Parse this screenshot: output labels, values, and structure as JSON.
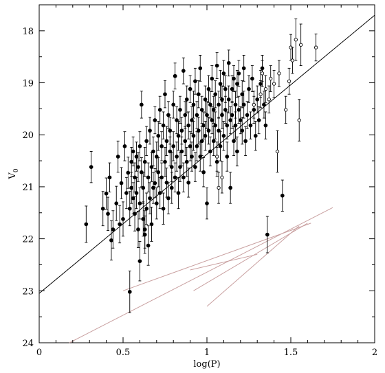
{
  "chart_data": {
    "type": "scatter",
    "title": "",
    "xlabel": "log(P)",
    "ylabel_main": "V",
    "ylabel_sub": "0",
    "xlim": [
      0,
      2
    ],
    "ylim": [
      24,
      17.5
    ],
    "y_inverted": true,
    "x_ticks": [
      0,
      0.5,
      1,
      1.5,
      2
    ],
    "x_tick_labels": [
      "0",
      "0.5",
      "1",
      "1.5",
      "2"
    ],
    "y_ticks": [
      18,
      19,
      20,
      21,
      22,
      23,
      24
    ],
    "y_tick_labels": [
      "18",
      "19",
      "20",
      "21",
      "22",
      "23",
      "24"
    ],
    "grid": false,
    "legend": "none",
    "colors": {
      "points": "#000000",
      "fit_line": "#000000",
      "reference_lines": "#c9a0a0"
    },
    "fit_line": {
      "x": [
        0,
        2
      ],
      "y": [
        23.05,
        17.7
      ]
    },
    "reference_lines": [
      {
        "x": [
          0.18,
          1.75
        ],
        "y": [
          24.0,
          21.4
        ]
      },
      {
        "x": [
          0.5,
          1.62
        ],
        "y": [
          23.0,
          21.7
        ]
      },
      {
        "x": [
          0.92,
          1.6
        ],
        "y": [
          23.0,
          21.7
        ]
      },
      {
        "x": [
          1.0,
          1.55
        ],
        "y": [
          23.3,
          21.75
        ]
      },
      {
        "x": [
          0.9,
          1.3
        ],
        "y": [
          22.6,
          22.3
        ]
      }
    ],
    "series_filled": [
      [
        0.28,
        21.72,
        0.35
      ],
      [
        0.31,
        20.62,
        0.3
      ],
      [
        0.38,
        21.42,
        0.33
      ],
      [
        0.4,
        21.13,
        0.3
      ],
      [
        0.41,
        21.52,
        0.32
      ],
      [
        0.42,
        20.82,
        0.28
      ],
      [
        0.43,
        22.03,
        0.38
      ],
      [
        0.44,
        21.82,
        0.36
      ],
      [
        0.46,
        21.32,
        0.33
      ],
      [
        0.47,
        20.42,
        0.3
      ],
      [
        0.48,
        21.72,
        0.36
      ],
      [
        0.49,
        20.93,
        0.3
      ],
      [
        0.5,
        21.62,
        0.33
      ],
      [
        0.51,
        20.22,
        0.28
      ],
      [
        0.52,
        21.12,
        0.3
      ],
      [
        0.53,
        20.73,
        0.3
      ],
      [
        0.54,
        21.42,
        0.33
      ],
      [
        0.55,
        20.52,
        0.28
      ],
      [
        0.55,
        21.02,
        0.3
      ],
      [
        0.56,
        20.32,
        0.28
      ],
      [
        0.56,
        21.22,
        0.3
      ],
      [
        0.57,
        20.82,
        0.28
      ],
      [
        0.57,
        21.52,
        0.33
      ],
      [
        0.58,
        20.42,
        0.28
      ],
      [
        0.58,
        21.12,
        0.3
      ],
      [
        0.59,
        20.62,
        0.28
      ],
      [
        0.59,
        21.82,
        0.35
      ],
      [
        0.6,
        20.22,
        0.28
      ],
      [
        0.6,
        21.32,
        0.3
      ],
      [
        0.6,
        22.43,
        0.38
      ],
      [
        0.61,
        19.42,
        0.26
      ],
      [
        0.61,
        20.72,
        0.28
      ],
      [
        0.62,
        21.02,
        0.3
      ],
      [
        0.62,
        21.62,
        0.33
      ],
      [
        0.63,
        20.52,
        0.28
      ],
      [
        0.63,
        21.92,
        0.36
      ],
      [
        0.64,
        20.12,
        0.28
      ],
      [
        0.64,
        21.42,
        0.3
      ],
      [
        0.65,
        20.82,
        0.28
      ],
      [
        0.65,
        22.13,
        0.38
      ],
      [
        0.66,
        19.92,
        0.26
      ],
      [
        0.66,
        21.22,
        0.3
      ],
      [
        0.67,
        20.62,
        0.28
      ],
      [
        0.67,
        21.72,
        0.33
      ],
      [
        0.68,
        20.32,
        0.28
      ],
      [
        0.68,
        21.02,
        0.3
      ],
      [
        0.69,
        19.72,
        0.26
      ],
      [
        0.69,
        20.93,
        0.28
      ],
      [
        0.7,
        20.42,
        0.28
      ],
      [
        0.7,
        21.32,
        0.3
      ],
      [
        0.71,
        20.02,
        0.28
      ],
      [
        0.71,
        20.72,
        0.28
      ],
      [
        0.72,
        19.52,
        0.26
      ],
      [
        0.72,
        21.12,
        0.3
      ],
      [
        0.73,
        20.22,
        0.28
      ],
      [
        0.73,
        20.82,
        0.28
      ],
      [
        0.74,
        19.82,
        0.26
      ],
      [
        0.74,
        21.42,
        0.3
      ],
      [
        0.75,
        20.52,
        0.28
      ],
      [
        0.75,
        19.22,
        0.26
      ],
      [
        0.76,
        20.12,
        0.28
      ],
      [
        0.76,
        20.92,
        0.28
      ],
      [
        0.77,
        19.62,
        0.26
      ],
      [
        0.77,
        21.22,
        0.3
      ],
      [
        0.78,
        20.32,
        0.28
      ],
      [
        0.78,
        19.92,
        0.26
      ],
      [
        0.79,
        20.62,
        0.28
      ],
      [
        0.79,
        21.02,
        0.3
      ],
      [
        0.8,
        19.42,
        0.26
      ],
      [
        0.8,
        20.22,
        0.28
      ],
      [
        0.81,
        18.87,
        0.25
      ],
      [
        0.81,
        20.82,
        0.28
      ],
      [
        0.82,
        19.72,
        0.26
      ],
      [
        0.82,
        20.42,
        0.28
      ],
      [
        0.83,
        20.02,
        0.28
      ],
      [
        0.83,
        21.12,
        0.3
      ],
      [
        0.84,
        19.52,
        0.26
      ],
      [
        0.84,
        20.62,
        0.28
      ],
      [
        0.85,
        19.92,
        0.26
      ],
      [
        0.85,
        20.32,
        0.28
      ],
      [
        0.86,
        18.77,
        0.25
      ],
      [
        0.86,
        20.82,
        0.28
      ],
      [
        0.87,
        19.62,
        0.26
      ],
      [
        0.87,
        20.12,
        0.28
      ],
      [
        0.88,
        19.32,
        0.26
      ],
      [
        0.88,
        20.52,
        0.28
      ],
      [
        0.89,
        19.82,
        0.26
      ],
      [
        0.89,
        20.92,
        0.28
      ],
      [
        0.9,
        19.12,
        0.26
      ],
      [
        0.9,
        20.22,
        0.28
      ],
      [
        0.91,
        19.72,
        0.26
      ],
      [
        0.91,
        20.42,
        0.28
      ],
      [
        0.92,
        19.42,
        0.26
      ],
      [
        0.92,
        20.02,
        0.28
      ],
      [
        0.93,
        18.97,
        0.25
      ],
      [
        0.93,
        20.62,
        0.28
      ],
      [
        0.94,
        19.62,
        0.26
      ],
      [
        0.94,
        20.22,
        0.28
      ],
      [
        0.95,
        19.22,
        0.26
      ],
      [
        0.95,
        19.92,
        0.26
      ],
      [
        0.96,
        18.72,
        0.25
      ],
      [
        0.96,
        20.42,
        0.28
      ],
      [
        0.97,
        19.52,
        0.26
      ],
      [
        0.97,
        20.12,
        0.28
      ],
      [
        0.98,
        19.82,
        0.26
      ],
      [
        0.98,
        20.72,
        0.28
      ],
      [
        0.99,
        19.32,
        0.26
      ],
      [
        0.99,
        20.02,
        0.28
      ],
      [
        1.0,
        19.62,
        0.26
      ],
      [
        1.0,
        21.32,
        0.3
      ],
      [
        1.01,
        19.12,
        0.26
      ],
      [
        1.01,
        19.92,
        0.26
      ],
      [
        1.02,
        19.42,
        0.26
      ],
      [
        1.02,
        20.32,
        0.28
      ],
      [
        1.03,
        19.72,
        0.26
      ],
      [
        1.03,
        18.92,
        0.25
      ],
      [
        1.04,
        19.52,
        0.26
      ],
      [
        1.04,
        20.12,
        0.28
      ],
      [
        1.05,
        19.22,
        0.26
      ],
      [
        1.05,
        19.82,
        0.26
      ],
      [
        1.06,
        18.67,
        0.25
      ],
      [
        1.06,
        20.52,
        0.28
      ],
      [
        1.07,
        19.42,
        0.26
      ],
      [
        1.07,
        19.92,
        0.26
      ],
      [
        1.08,
        19.02,
        0.26
      ],
      [
        1.08,
        20.22,
        0.28
      ],
      [
        1.09,
        19.62,
        0.26
      ],
      [
        1.09,
        19.32,
        0.26
      ],
      [
        1.1,
        18.82,
        0.25
      ],
      [
        1.1,
        20.02,
        0.28
      ],
      [
        1.11,
        19.52,
        0.26
      ],
      [
        1.11,
        19.12,
        0.26
      ],
      [
        1.12,
        19.82,
        0.26
      ],
      [
        1.12,
        20.42,
        0.28
      ],
      [
        1.13,
        19.32,
        0.26
      ],
      [
        1.13,
        18.62,
        0.25
      ],
      [
        1.14,
        19.72,
        0.26
      ],
      [
        1.14,
        21.02,
        0.3
      ],
      [
        1.15,
        19.12,
        0.26
      ],
      [
        1.15,
        19.62,
        0.26
      ],
      [
        1.16,
        18.92,
        0.25
      ],
      [
        1.16,
        20.12,
        0.28
      ],
      [
        1.17,
        19.42,
        0.26
      ],
      [
        1.17,
        19.82,
        0.26
      ],
      [
        1.18,
        19.02,
        0.26
      ],
      [
        1.18,
        20.32,
        0.28
      ],
      [
        1.19,
        19.52,
        0.26
      ],
      [
        1.19,
        18.82,
        0.25
      ],
      [
        1.2,
        19.72,
        0.26
      ],
      [
        1.21,
        19.22,
        0.26
      ],
      [
        1.21,
        19.92,
        0.26
      ],
      [
        1.22,
        18.72,
        0.25
      ],
      [
        1.22,
        19.42,
        0.26
      ],
      [
        1.23,
        20.12,
        0.28
      ],
      [
        1.24,
        19.62,
        0.26
      ],
      [
        1.25,
        19.12,
        0.26
      ],
      [
        1.26,
        19.82,
        0.26
      ],
      [
        1.27,
        18.92,
        0.25
      ],
      [
        1.28,
        19.52,
        0.26
      ],
      [
        1.29,
        20.02,
        0.28
      ],
      [
        1.3,
        19.32,
        0.26
      ],
      [
        1.31,
        19.72,
        0.26
      ],
      [
        1.32,
        19.02,
        0.26
      ],
      [
        1.33,
        18.72,
        0.25
      ],
      [
        1.34,
        19.42,
        0.26
      ],
      [
        1.35,
        19.82,
        0.26
      ],
      [
        1.36,
        21.92,
        0.35
      ],
      [
        1.45,
        21.17,
        0.3
      ],
      [
        0.54,
        23.02,
        0.4
      ],
      [
        0.63,
        21.82,
        0.36
      ]
    ],
    "series_open": [
      [
        1.28,
        19.42,
        0.26
      ],
      [
        1.32,
        19.22,
        0.26
      ],
      [
        1.33,
        18.82,
        0.25
      ],
      [
        1.35,
        19.12,
        0.26
      ],
      [
        1.37,
        19.32,
        0.26
      ],
      [
        1.38,
        18.92,
        0.25
      ],
      [
        1.4,
        19.02,
        0.26
      ],
      [
        1.42,
        20.32,
        0.4
      ],
      [
        1.43,
        18.82,
        0.25
      ],
      [
        1.47,
        19.52,
        0.26
      ],
      [
        1.49,
        18.97,
        0.25
      ],
      [
        1.5,
        18.32,
        0.25
      ],
      [
        1.51,
        18.57,
        0.25
      ],
      [
        1.53,
        18.17,
        0.4
      ],
      [
        1.55,
        19.72,
        0.4
      ],
      [
        1.56,
        18.27,
        0.4
      ],
      [
        1.65,
        18.32,
        0.26
      ],
      [
        1.07,
        21.02,
        0.3
      ],
      [
        1.06,
        20.42,
        0.28
      ],
      [
        1.09,
        20.82,
        0.3
      ]
    ]
  }
}
